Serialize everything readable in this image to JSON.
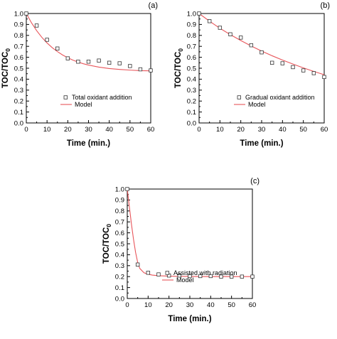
{
  "chart_data": [
    {
      "type": "scatter",
      "panel_label": "(a)",
      "xlabel": "Time (min.)",
      "ylabel_main": "TOC/TOC",
      "ylabel_sub": "0",
      "xlim": [
        0,
        60
      ],
      "ylim": [
        0,
        1.0
      ],
      "xticks": [
        "0",
        "10",
        "20",
        "30",
        "40",
        "50",
        "60"
      ],
      "yticks": [
        "0.0",
        "0.1",
        "0.2",
        "0.3",
        "0.4",
        "0.5",
        "0.6",
        "0.7",
        "0.8",
        "0.9",
        "1.0"
      ],
      "legend_position": "bottom-right",
      "series": [
        {
          "name": "Total oxidant addition",
          "kind": "markers",
          "x": [
            0,
            5,
            10,
            15,
            20,
            25,
            30,
            35,
            40,
            45,
            50,
            55,
            60
          ],
          "y": [
            1.0,
            0.89,
            0.76,
            0.68,
            0.59,
            0.56,
            0.56,
            0.57,
            0.55,
            0.545,
            0.52,
            0.49,
            0.48
          ]
        },
        {
          "name": "Model",
          "kind": "line",
          "color": "#e8555a",
          "x": [
            0,
            2.5,
            5,
            7.5,
            10,
            12.5,
            15,
            17.5,
            20,
            22.5,
            25,
            27.5,
            30,
            35,
            40,
            45,
            50,
            55,
            60
          ],
          "y": [
            1.0,
            0.915,
            0.843,
            0.782,
            0.731,
            0.688,
            0.652,
            0.621,
            0.596,
            0.574,
            0.556,
            0.541,
            0.529,
            0.51,
            0.497,
            0.489,
            0.483,
            0.478,
            0.476
          ]
        }
      ]
    },
    {
      "type": "scatter",
      "panel_label": "(b)",
      "xlabel": "Time (min.)",
      "ylabel_main": "TOC/TOC",
      "ylabel_sub": "0",
      "xlim": [
        0,
        60
      ],
      "ylim": [
        0,
        1.0
      ],
      "xticks": [
        "0",
        "10",
        "20",
        "30",
        "40",
        "50",
        "60"
      ],
      "yticks": [
        "0.0",
        "0.1",
        "0.2",
        "0.3",
        "0.4",
        "0.5",
        "0.6",
        "0.7",
        "0.8",
        "0.9",
        "1.0"
      ],
      "legend_position": "bottom-right",
      "series": [
        {
          "name": "Gradual oxidant addition",
          "kind": "markers",
          "x": [
            0,
            5,
            10,
            15,
            20,
            25,
            30,
            35,
            40,
            45,
            50,
            55,
            60
          ],
          "y": [
            1.0,
            0.93,
            0.87,
            0.81,
            0.78,
            0.71,
            0.645,
            0.55,
            0.545,
            0.51,
            0.48,
            0.455,
            0.42
          ]
        },
        {
          "name": "Model",
          "kind": "line",
          "color": "#e8555a",
          "x": [
            0,
            5,
            10,
            15,
            20,
            25,
            30,
            35,
            40,
            45,
            50,
            55,
            60
          ],
          "y": [
            1.0,
            0.93,
            0.865,
            0.807,
            0.753,
            0.703,
            0.657,
            0.614,
            0.575,
            0.538,
            0.503,
            0.471,
            0.441
          ]
        }
      ]
    },
    {
      "type": "scatter",
      "panel_label": "(c)",
      "xlabel": "Time (min.)",
      "ylabel_main": "TOC/TOC",
      "ylabel_sub": "0",
      "xlim": [
        0,
        60
      ],
      "ylim": [
        0,
        1.0
      ],
      "xticks": [
        "0",
        "10",
        "20",
        "30",
        "40",
        "50",
        "60"
      ],
      "yticks": [
        "0.0",
        "0.1",
        "0.2",
        "0.3",
        "0.4",
        "0.5",
        "0.6",
        "0.7",
        "0.8",
        "0.9",
        "1.0"
      ],
      "legend_position": "bottom-right",
      "series": [
        {
          "name": "Assisted with radiation",
          "kind": "markers",
          "x": [
            0,
            5,
            10,
            15,
            20,
            25,
            30,
            35,
            40,
            45,
            50,
            55,
            60
          ],
          "y": [
            1.0,
            0.31,
            0.235,
            0.22,
            0.21,
            0.21,
            0.205,
            0.205,
            0.205,
            0.2,
            0.2,
            0.2,
            0.2
          ]
        },
        {
          "name": "Model",
          "kind": "line",
          "color": "#e8555a",
          "x": [
            0,
            1,
            2,
            3,
            4,
            5,
            6,
            8,
            10,
            12,
            15,
            20,
            25,
            30,
            40,
            50,
            60
          ],
          "y": [
            1.0,
            0.84,
            0.68,
            0.54,
            0.42,
            0.33,
            0.275,
            0.235,
            0.222,
            0.214,
            0.208,
            0.204,
            0.202,
            0.201,
            0.2,
            0.2,
            0.2
          ]
        }
      ]
    }
  ]
}
